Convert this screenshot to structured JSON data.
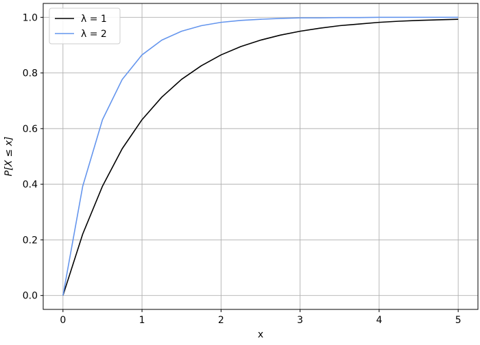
{
  "chart_data": {
    "type": "line",
    "xlabel": "x",
    "ylabel": "P[X ≤ x]",
    "xlim": [
      -0.25,
      5.25
    ],
    "ylim": [
      -0.05,
      1.05
    ],
    "xticks": [
      0,
      1,
      2,
      3,
      4,
      5
    ],
    "xtick_labels": [
      "0",
      "1",
      "2",
      "3",
      "4",
      "5"
    ],
    "yticks": [
      0.0,
      0.2,
      0.4,
      0.6,
      0.8,
      1.0
    ],
    "ytick_labels": [
      "0.0",
      "0.2",
      "0.4",
      "0.6",
      "0.8",
      "1.0"
    ],
    "grid": true,
    "legend_position": "top-left",
    "x": [
      0,
      0.25,
      0.5,
      0.75,
      1,
      1.25,
      1.5,
      1.75,
      2,
      2.25,
      2.5,
      2.75,
      3,
      3.25,
      3.5,
      3.75,
      4,
      4.25,
      4.5,
      4.75,
      5
    ],
    "series": [
      {
        "name": "λ = 1",
        "color": "#000000",
        "values": [
          0.0,
          0.221,
          0.393,
          0.528,
          0.632,
          0.713,
          0.777,
          0.826,
          0.865,
          0.895,
          0.918,
          0.936,
          0.95,
          0.961,
          0.97,
          0.976,
          0.982,
          0.986,
          0.989,
          0.991,
          0.993
        ]
      },
      {
        "name": "λ = 2",
        "color": "#6495ED",
        "values": [
          0.0,
          0.393,
          0.632,
          0.777,
          0.865,
          0.918,
          0.95,
          0.97,
          0.982,
          0.989,
          0.993,
          0.996,
          0.998,
          0.998,
          0.999,
          0.999,
          1.0,
          1.0,
          1.0,
          1.0,
          1.0
        ]
      }
    ]
  }
}
